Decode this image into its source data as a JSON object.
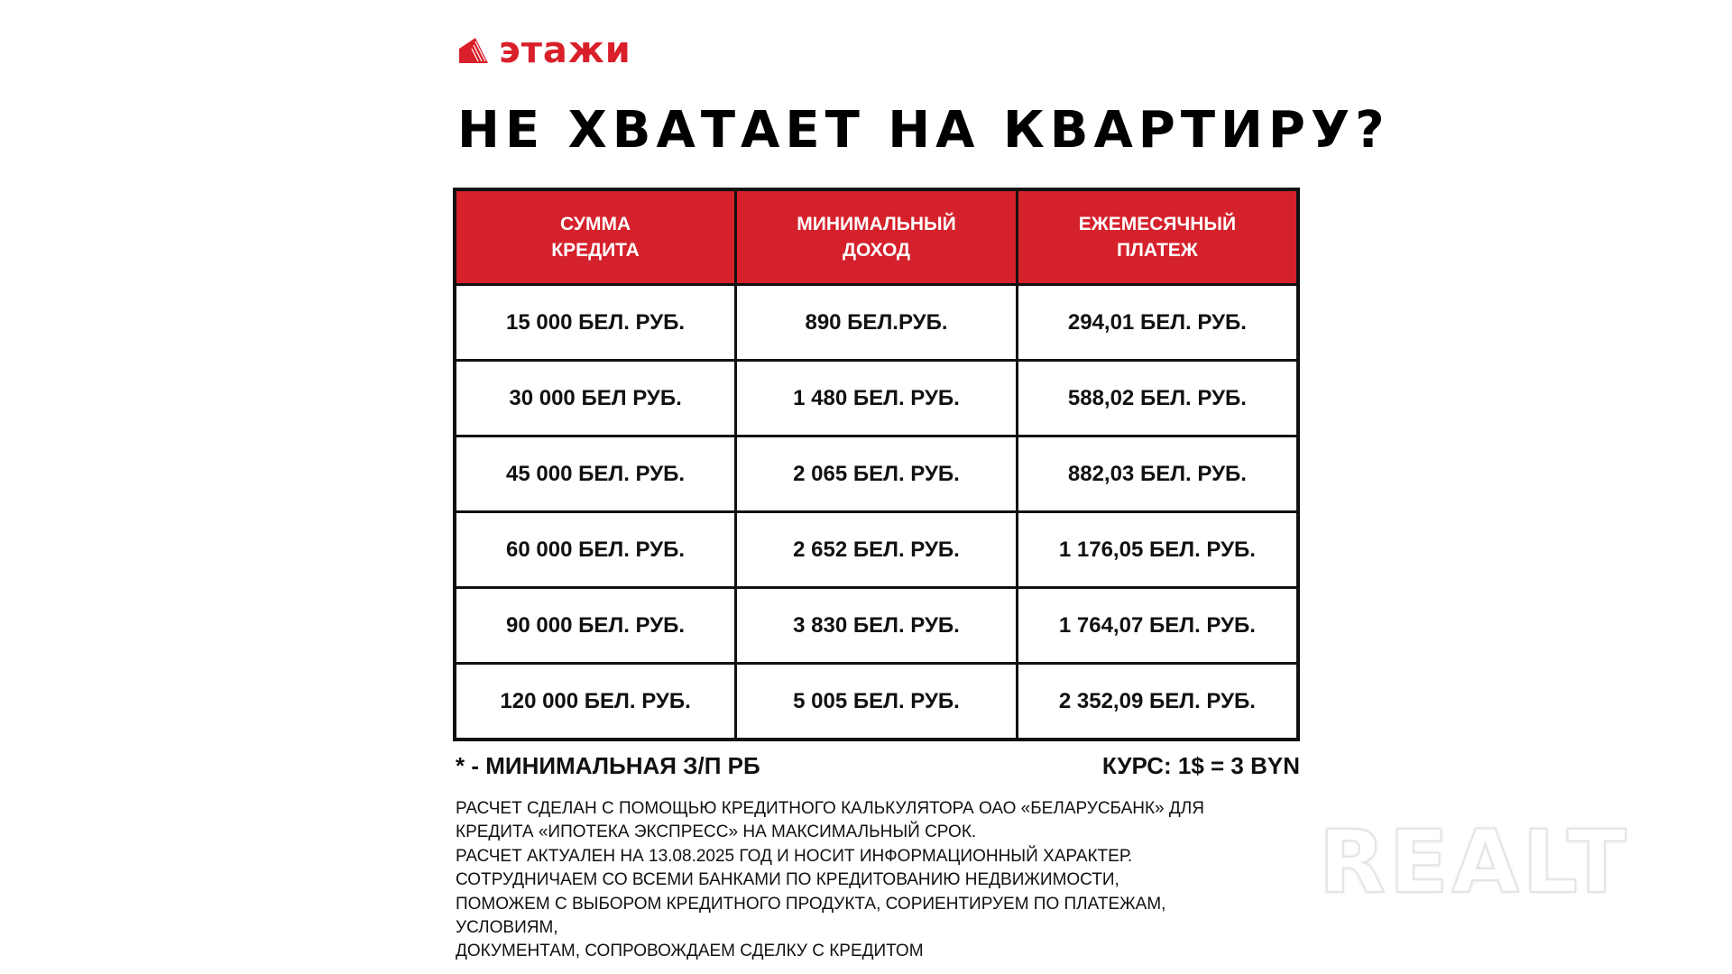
{
  "brand": {
    "name": "этажи",
    "color": "#d9202a",
    "icon": "building-icon"
  },
  "title": "НЕ ХВАТАЕТ НА КВАРТИРУ?",
  "table": {
    "header_color": "#d5212b",
    "headers": [
      [
        "СУММА",
        "КРЕДИТА"
      ],
      [
        "МИНИМАЛЬНЫЙ",
        "ДОХОД"
      ],
      [
        "ЕЖЕМЕСЯЧНЫЙ",
        "ПЛАТЕЖ"
      ]
    ],
    "rows": [
      [
        "15 000 БЕЛ. РУБ.",
        "890 БЕЛ.РУБ.",
        "294,01 БЕЛ. РУБ."
      ],
      [
        "30 000 БЕЛ РУБ.",
        "1 480 БЕЛ. РУБ.",
        "588,02 БЕЛ. РУБ."
      ],
      [
        "45 000 БЕЛ. РУБ.",
        "2 065 БЕЛ. РУБ.",
        "882,03 БЕЛ. РУБ."
      ],
      [
        "60 000 БЕЛ. РУБ.",
        "2 652 БЕЛ. РУБ.",
        "1 176,05 БЕЛ. РУБ."
      ],
      [
        "90 000 БЕЛ. РУБ.",
        "3 830 БЕЛ. РУБ.",
        "1 764,07 БЕЛ. РУБ."
      ],
      [
        "120 000 БЕЛ. РУБ.",
        "5 005 БЕЛ. РУБ.",
        "2 352,09 БЕЛ. РУБ."
      ]
    ]
  },
  "footnote": "* - МИНИМАЛЬНАЯ З/П РБ",
  "rate": "КУРС: 1$ = 3 BYN",
  "disclaimer": [
    "РАСЧЕТ СДЕЛАН С ПОМОЩЬЮ КРЕДИТНОГО КАЛЬКУЛЯТОРА ОАО «БЕЛАРУСБАНК» ДЛЯ",
    "КРЕДИТА «ИПОТЕКА ЭКСПРЕСС» НА МАКСИМАЛЬНЫЙ СРОК.",
    "РАСЧЕТ АКТУАЛЕН НА 13.08.2025 ГОД И НОСИТ ИНФОРМАЦИОННЫЙ ХАРАКТЕР.",
    "СОТРУДНИЧАЕМ СО ВСЕМИ БАНКАМИ ПО КРЕДИТОВАНИЮ НЕДВИЖИМОСТИ,",
    "ПОМОЖЕМ С ВЫБОРОМ КРЕДИТНОГО ПРОДУКТА, СОРИЕНТИРУЕМ ПО ПЛАТЕЖАМ,",
    "УСЛОВИЯМ,",
    "ДОКУМЕНТАМ, СОПРОВОЖДАЕМ СДЕЛКУ С КРЕДИТОМ"
  ],
  "watermark": "REALT"
}
